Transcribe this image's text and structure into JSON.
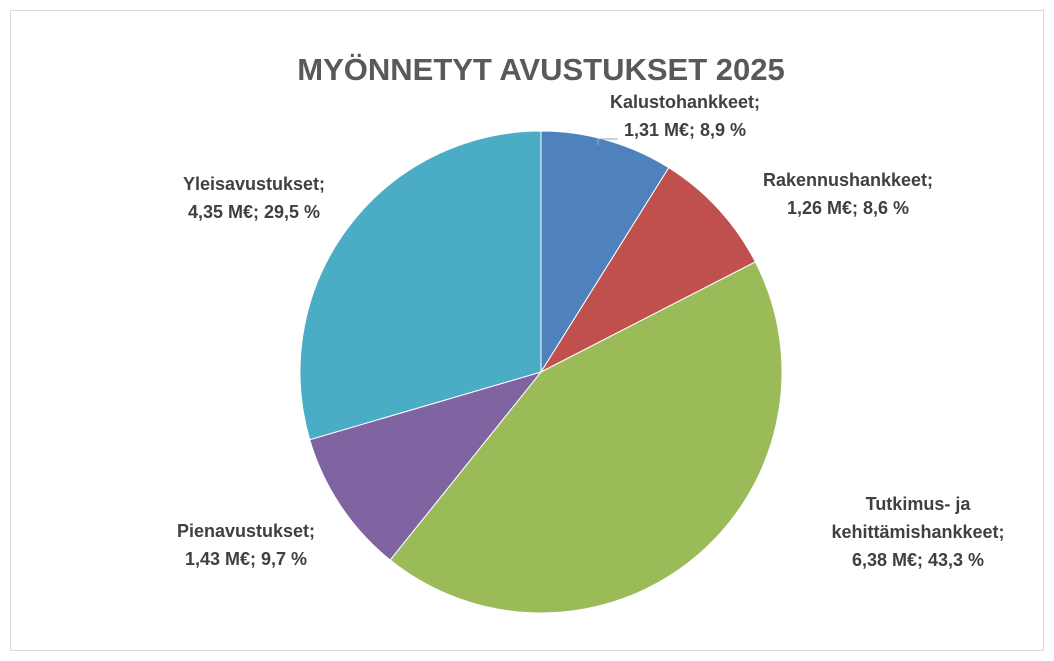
{
  "chart_data": {
    "type": "pie",
    "title": "MYÖNNETYT AVUSTUKSET 2025",
    "categories": [
      "Kalustohankkeet;",
      "Rakennushankkeet;",
      "Tutkimus- ja kehittämishankkeet;",
      "Pienavustukset;",
      "Yleisavustukset;"
    ],
    "values": [
      1.31,
      1.26,
      6.38,
      1.43,
      4.35
    ],
    "value_labels": [
      "1,31 M€; 8,9 %",
      "1,26 M€; 8,6 %",
      "6,38 M€; 43,3 %",
      "1,43 M€; 9,7 %",
      "4,35 M€; 29,5 %"
    ],
    "colors": [
      "#4f81bd",
      "#c0504d",
      "#9bbb59",
      "#8064a2",
      "#4bacc6"
    ]
  }
}
